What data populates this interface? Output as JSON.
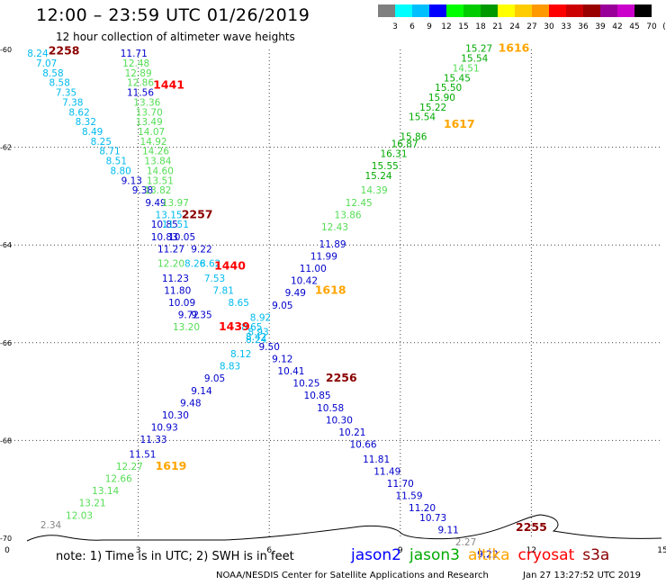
{
  "title": "12:00 – 23:59 UTC 01/26/2019",
  "subtitle": "12 hour collection of altimeter wave heights",
  "color_scale": {
    "labels": [
      "3",
      "6",
      "9",
      "12",
      "15",
      "18",
      "21",
      "24",
      "27",
      "30",
      "33",
      "36",
      "39",
      "42",
      "45",
      "70",
      "(ft)"
    ],
    "colors": [
      "#7f7f7f",
      "#00ffff",
      "#00bfff",
      "#0000ff",
      "#00ff00",
      "#00cc00",
      "#009900",
      "#ffff00",
      "#ffcc00",
      "#ff9900",
      "#ff0000",
      "#cc0000",
      "#990000",
      "#990099",
      "#cc00cc",
      "#000000"
    ]
  },
  "note": "note:  1) Time is in UTC;  2) SWH is in feet",
  "legend": [
    {
      "name": "jason2",
      "color": "#0000ff"
    },
    {
      "name": "jason3",
      "color": "#00aa00"
    },
    {
      "name": "altika",
      "color": "#ffa500"
    },
    {
      "name": "cryosat",
      "color": "#ff0000"
    },
    {
      "name": "s3a",
      "color": "#8b0000"
    }
  ],
  "credit": "NOAA/NESDIS Center for Satellite Applications and Research",
  "timestamp": "Jan 27 13:27:52 UTC 2019",
  "chart_data": {
    "type": "scatter",
    "title": "12:00 – 23:59 UTC 01/26/2019",
    "xlim": [
      0,
      15
    ],
    "ylim": [
      -70,
      -60
    ],
    "x_ticks": [
      "0",
      "3",
      "6",
      "9",
      "12",
      "15"
    ],
    "y_ticks": [
      "-60",
      "-62",
      "-64",
      "-66",
      "-68",
      "-70"
    ],
    "grid": true,
    "legend_position": "bottom",
    "colors": {
      "gray": "#888888",
      "cyan": "#00bbee",
      "blue": "#0000cc",
      "lightgreen": "#55dd55",
      "green": "#00aa00",
      "darkgreen": "#008800",
      "orange": "#ffa500",
      "red": "#ff0000",
      "darkred": "#8b0000"
    },
    "time_labels": [
      {
        "text": "2258",
        "x": 1.3,
        "y": -60.1,
        "c": "darkred"
      },
      {
        "text": "1441",
        "x": 3.7,
        "y": -60.8,
        "c": "red"
      },
      {
        "text": "2257",
        "x": 4.35,
        "y": -63.45,
        "c": "darkred"
      },
      {
        "text": "1440",
        "x": 5.1,
        "y": -64.5,
        "c": "red"
      },
      {
        "text": "1439",
        "x": 5.2,
        "y": -65.75,
        "c": "red"
      },
      {
        "text": "1618",
        "x": 7.4,
        "y": -65.0,
        "c": "orange"
      },
      {
        "text": "1616",
        "x": 11.6,
        "y": -60.05,
        "c": "orange"
      },
      {
        "text": "1617",
        "x": 10.35,
        "y": -61.6,
        "c": "orange"
      },
      {
        "text": "1619",
        "x": 3.75,
        "y": -68.6,
        "c": "orange"
      },
      {
        "text": "2256",
        "x": 7.65,
        "y": -66.8,
        "c": "darkred"
      },
      {
        "text": "2255",
        "x": 12.0,
        "y": -69.85,
        "c": "darkred"
      }
    ],
    "points": [
      {
        "x": 0.7,
        "y": -60.15,
        "v": "8.24",
        "c": "cyan"
      },
      {
        "x": 0.9,
        "y": -60.35,
        "v": "7.07",
        "c": "cyan"
      },
      {
        "x": 1.05,
        "y": -60.55,
        "v": "8.58",
        "c": "cyan"
      },
      {
        "x": 1.2,
        "y": -60.75,
        "v": "8.58",
        "c": "cyan"
      },
      {
        "x": 1.35,
        "y": -60.95,
        "v": "7.35",
        "c": "cyan"
      },
      {
        "x": 1.5,
        "y": -61.15,
        "v": "7.38",
        "c": "cyan"
      },
      {
        "x": 1.65,
        "y": -61.35,
        "v": "8.62",
        "c": "cyan"
      },
      {
        "x": 1.8,
        "y": -61.55,
        "v": "8.32",
        "c": "cyan"
      },
      {
        "x": 1.95,
        "y": -61.75,
        "v": "8.49",
        "c": "cyan"
      },
      {
        "x": 2.15,
        "y": -61.95,
        "v": "8.25",
        "c": "cyan"
      },
      {
        "x": 2.35,
        "y": -62.15,
        "v": "8.71",
        "c": "cyan"
      },
      {
        "x": 2.5,
        "y": -62.35,
        "v": "8.51",
        "c": "cyan"
      },
      {
        "x": 2.6,
        "y": -62.55,
        "v": "8.80",
        "c": "cyan"
      },
      {
        "x": 2.9,
        "y": -60.15,
        "v": "11.71",
        "c": "blue"
      },
      {
        "x": 2.95,
        "y": -60.35,
        "v": "12.48",
        "c": "lightgreen"
      },
      {
        "x": 3.0,
        "y": -60.55,
        "v": "12.89",
        "c": "lightgreen"
      },
      {
        "x": 3.05,
        "y": -60.75,
        "v": "12.86",
        "c": "lightgreen"
      },
      {
        "x": 3.05,
        "y": -60.95,
        "v": "11.56",
        "c": "blue"
      },
      {
        "x": 3.2,
        "y": -61.15,
        "v": "13.36",
        "c": "lightgreen"
      },
      {
        "x": 3.25,
        "y": -61.35,
        "v": "13.70",
        "c": "lightgreen"
      },
      {
        "x": 3.25,
        "y": -61.55,
        "v": "13.49",
        "c": "lightgreen"
      },
      {
        "x": 3.3,
        "y": -61.75,
        "v": "14.07",
        "c": "lightgreen"
      },
      {
        "x": 3.35,
        "y": -61.95,
        "v": "14.92",
        "c": "lightgreen"
      },
      {
        "x": 3.4,
        "y": -62.15,
        "v": "14.26",
        "c": "lightgreen"
      },
      {
        "x": 3.45,
        "y": -62.35,
        "v": "13.84",
        "c": "lightgreen"
      },
      {
        "x": 3.5,
        "y": -62.55,
        "v": "14.60",
        "c": "lightgreen"
      },
      {
        "x": 3.5,
        "y": -62.75,
        "v": "13.51",
        "c": "lightgreen"
      },
      {
        "x": 2.85,
        "y": -62.75,
        "v": "9.13",
        "c": "blue"
      },
      {
        "x": 3.1,
        "y": -62.95,
        "v": "9.38",
        "c": "blue"
      },
      {
        "x": 3.45,
        "y": -62.95,
        "v": "13.82",
        "c": "lightgreen"
      },
      {
        "x": 3.4,
        "y": -63.2,
        "v": "9.49",
        "c": "blue"
      },
      {
        "x": 3.85,
        "y": -63.2,
        "v": "13.97",
        "c": "lightgreen"
      },
      {
        "x": 3.7,
        "y": -63.45,
        "v": "13.15",
        "c": "cyan"
      },
      {
        "x": 3.6,
        "y": -63.65,
        "v": "10.85",
        "c": "blue"
      },
      {
        "x": 3.85,
        "y": -63.65,
        "v": "11.51",
        "c": "cyan"
      },
      {
        "x": 3.6,
        "y": -63.9,
        "v": "10.83",
        "c": "blue"
      },
      {
        "x": 4.0,
        "y": -63.9,
        "v": "10.05",
        "c": "blue"
      },
      {
        "x": 3.75,
        "y": -64.15,
        "v": "11.27",
        "c": "blue"
      },
      {
        "x": 4.45,
        "y": -64.15,
        "v": "9.22",
        "c": "blue"
      },
      {
        "x": 3.75,
        "y": -64.45,
        "v": "12.20",
        "c": "lightgreen"
      },
      {
        "x": 4.3,
        "y": -64.45,
        "v": "8.26",
        "c": "cyan"
      },
      {
        "x": 4.65,
        "y": -64.45,
        "v": "8.62",
        "c": "cyan"
      },
      {
        "x": 3.85,
        "y": -64.75,
        "v": "11.23",
        "c": "blue"
      },
      {
        "x": 4.75,
        "y": -64.75,
        "v": "7.53",
        "c": "cyan"
      },
      {
        "x": 3.9,
        "y": -65.0,
        "v": "11.80",
        "c": "blue"
      },
      {
        "x": 4.95,
        "y": -65.0,
        "v": "7.81",
        "c": "cyan"
      },
      {
        "x": 4.0,
        "y": -65.25,
        "v": "10.09",
        "c": "blue"
      },
      {
        "x": 5.3,
        "y": -65.25,
        "v": "8.65",
        "c": "cyan"
      },
      {
        "x": 4.15,
        "y": -65.5,
        "v": "9.72",
        "c": "blue"
      },
      {
        "x": 4.45,
        "y": -65.5,
        "v": "9.35",
        "c": "blue"
      },
      {
        "x": 4.1,
        "y": -65.75,
        "v": "13.20",
        "c": "lightgreen"
      },
      {
        "x": 5.8,
        "y": -65.55,
        "v": "8.92",
        "c": "cyan"
      },
      {
        "x": 5.6,
        "y": -65.75,
        "v": "8.65",
        "c": "cyan"
      },
      {
        "x": 5.75,
        "y": -65.85,
        "v": "8.93",
        "c": "cyan"
      },
      {
        "x": 5.7,
        "y": -65.95,
        "v": "8.42",
        "c": "cyan"
      },
      {
        "x": 5.7,
        "y": -66.0,
        "v": "8.24",
        "c": "cyan"
      },
      {
        "x": 6.0,
        "y": -66.15,
        "v": "9.50",
        "c": "blue"
      },
      {
        "x": 5.35,
        "y": -66.3,
        "v": "8.12",
        "c": "cyan"
      },
      {
        "x": 5.1,
        "y": -66.55,
        "v": "8.83",
        "c": "cyan"
      },
      {
        "x": 4.75,
        "y": -66.8,
        "v": "9.05",
        "c": "blue"
      },
      {
        "x": 4.45,
        "y": -67.05,
        "v": "9.14",
        "c": "blue"
      },
      {
        "x": 4.2,
        "y": -67.3,
        "v": "9.48",
        "c": "blue"
      },
      {
        "x": 3.85,
        "y": -67.55,
        "v": "10.30",
        "c": "blue"
      },
      {
        "x": 3.6,
        "y": -67.8,
        "v": "10.93",
        "c": "blue"
      },
      {
        "x": 3.35,
        "y": -68.05,
        "v": "11.33",
        "c": "blue"
      },
      {
        "x": 3.1,
        "y": -68.35,
        "v": "11.51",
        "c": "blue"
      },
      {
        "x": 2.8,
        "y": -68.6,
        "v": "12.27",
        "c": "lightgreen"
      },
      {
        "x": 2.55,
        "y": -68.85,
        "v": "12.66",
        "c": "lightgreen"
      },
      {
        "x": 2.25,
        "y": -69.1,
        "v": "13.14",
        "c": "lightgreen"
      },
      {
        "x": 1.95,
        "y": -69.35,
        "v": "13.21",
        "c": "lightgreen"
      },
      {
        "x": 1.65,
        "y": -69.6,
        "v": "12.03",
        "c": "lightgreen"
      },
      {
        "x": 1.0,
        "y": -69.8,
        "v": "2.34",
        "c": "gray"
      },
      {
        "x": 10.8,
        "y": -60.05,
        "v": "15.27",
        "c": "green"
      },
      {
        "x": 10.7,
        "y": -60.25,
        "v": "15.54",
        "c": "green"
      },
      {
        "x": 10.5,
        "y": -60.45,
        "v": "14.51",
        "c": "lightgreen"
      },
      {
        "x": 10.3,
        "y": -60.65,
        "v": "15.45",
        "c": "green"
      },
      {
        "x": 10.1,
        "y": -60.85,
        "v": "15.50",
        "c": "green"
      },
      {
        "x": 9.95,
        "y": -61.05,
        "v": "15.90",
        "c": "green"
      },
      {
        "x": 9.75,
        "y": -61.25,
        "v": "15.22",
        "c": "green"
      },
      {
        "x": 9.5,
        "y": -61.45,
        "v": "15.54",
        "c": "green"
      },
      {
        "x": 9.3,
        "y": -61.85,
        "v": "15.86",
        "c": "green"
      },
      {
        "x": 9.1,
        "y": -62.0,
        "v": "16.87",
        "c": "green"
      },
      {
        "x": 8.85,
        "y": -62.2,
        "v": "16.31",
        "c": "green"
      },
      {
        "x": 8.65,
        "y": -62.45,
        "v": "15.55",
        "c": "green"
      },
      {
        "x": 8.5,
        "y": -62.65,
        "v": "15.24",
        "c": "green"
      },
      {
        "x": 8.4,
        "y": -62.95,
        "v": "14.39",
        "c": "lightgreen"
      },
      {
        "x": 8.05,
        "y": -63.2,
        "v": "12.45",
        "c": "lightgreen"
      },
      {
        "x": 7.8,
        "y": -63.45,
        "v": "13.86",
        "c": "lightgreen"
      },
      {
        "x": 7.5,
        "y": -63.7,
        "v": "12.43",
        "c": "lightgreen"
      },
      {
        "x": 7.45,
        "y": -64.05,
        "v": "11.89",
        "c": "blue"
      },
      {
        "x": 7.25,
        "y": -64.3,
        "v": "11.99",
        "c": "blue"
      },
      {
        "x": 7.0,
        "y": -64.55,
        "v": "11.00",
        "c": "blue"
      },
      {
        "x": 6.8,
        "y": -64.8,
        "v": "10.42",
        "c": "blue"
      },
      {
        "x": 6.6,
        "y": -65.05,
        "v": "9.49",
        "c": "blue"
      },
      {
        "x": 6.3,
        "y": -65.3,
        "v": "9.05",
        "c": "blue"
      },
      {
        "x": 6.3,
        "y": -66.4,
        "v": "9.12",
        "c": "blue"
      },
      {
        "x": 6.5,
        "y": -66.65,
        "v": "10.41",
        "c": "blue"
      },
      {
        "x": 6.85,
        "y": -66.9,
        "v": "10.25",
        "c": "blue"
      },
      {
        "x": 7.1,
        "y": -67.15,
        "v": "10.85",
        "c": "blue"
      },
      {
        "x": 7.4,
        "y": -67.4,
        "v": "10.58",
        "c": "blue"
      },
      {
        "x": 7.6,
        "y": -67.65,
        "v": "10.30",
        "c": "blue"
      },
      {
        "x": 7.9,
        "y": -67.9,
        "v": "10.21",
        "c": "blue"
      },
      {
        "x": 8.15,
        "y": -68.15,
        "v": "10.66",
        "c": "blue"
      },
      {
        "x": 8.45,
        "y": -68.45,
        "v": "11.81",
        "c": "blue"
      },
      {
        "x": 8.7,
        "y": -68.7,
        "v": "11.49",
        "c": "blue"
      },
      {
        "x": 9.0,
        "y": -68.95,
        "v": "11.70",
        "c": "blue"
      },
      {
        "x": 9.2,
        "y": -69.2,
        "v": "11.59",
        "c": "blue"
      },
      {
        "x": 9.5,
        "y": -69.45,
        "v": "11.20",
        "c": "blue"
      },
      {
        "x": 9.75,
        "y": -69.65,
        "v": "10.73",
        "c": "blue"
      },
      {
        "x": 10.1,
        "y": -69.9,
        "v": "9.11",
        "c": "blue"
      },
      {
        "x": 10.5,
        "y": -70.15,
        "v": "2.27",
        "c": "gray"
      },
      {
        "x": 11.0,
        "y": -70.4,
        "v": "9.22",
        "c": "blue"
      }
    ]
  }
}
